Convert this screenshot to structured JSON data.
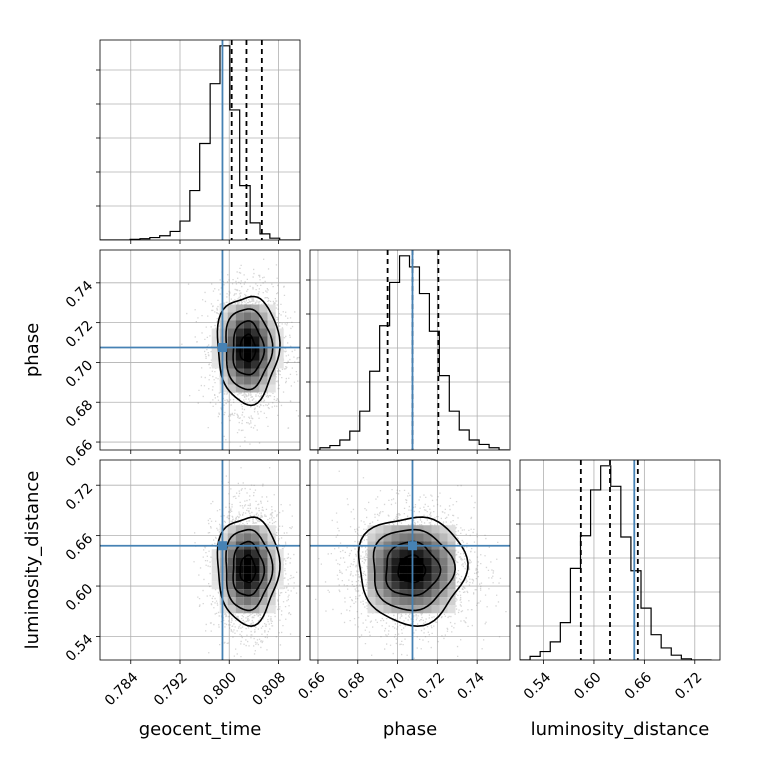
{
  "colors": {
    "truth": "#4682b4",
    "hist": "#000000",
    "grid": "#b0b0b0"
  },
  "chart_data": {
    "type": "corner",
    "parameters": [
      "geocent_time",
      "phase",
      "luminosity_distance"
    ],
    "truths": {
      "geocent_time": 0.7989,
      "phase": 0.7075,
      "luminosity_distance": 0.648
    },
    "ranges": {
      "geocent_time": [
        0.779,
        0.8115
      ],
      "phase": [
        0.656,
        0.7565
      ],
      "luminosity_distance": [
        0.512,
        0.75
      ]
    },
    "ticks": {
      "geocent_time": [
        "0.784",
        "0.792",
        "0.800",
        "0.808"
      ],
      "phase": [
        "0.66",
        "0.68",
        "0.70",
        "0.72",
        "0.74"
      ],
      "luminosity_distance": [
        "0.54",
        "0.60",
        "0.66",
        "0.72"
      ]
    },
    "quantiles": {
      "geocent_time": [
        0.8004,
        0.8028,
        0.8053
      ],
      "phase": [
        0.695,
        0.7075,
        0.7205
      ],
      "luminosity_distance": [
        0.5844,
        0.6191,
        0.6522
      ]
    },
    "histograms": {
      "geocent_time": {
        "bins": [
          0.779,
          0.7806,
          0.7822,
          0.7839,
          0.7855,
          0.7871,
          0.7887,
          0.7904,
          0.792,
          0.7936,
          0.7952,
          0.7969,
          0.7985,
          0.8001,
          0.8017,
          0.8034,
          0.805,
          0.8066,
          0.8082,
          0.8099,
          0.8115
        ],
        "counts": [
          0,
          0,
          0,
          1,
          2,
          4,
          7,
          14,
          31,
          81,
          158,
          256,
          318,
          213,
          89,
          28,
          10,
          3,
          0,
          0
        ]
      },
      "phase": {
        "bins": [
          0.656,
          0.661,
          0.666,
          0.671,
          0.676,
          0.681,
          0.686,
          0.691,
          0.696,
          0.701,
          0.706,
          0.711,
          0.716,
          0.721,
          0.726,
          0.731,
          0.736,
          0.741,
          0.746,
          0.751,
          0.756
        ],
        "counts": [
          0,
          2,
          4,
          9,
          17,
          35,
          71,
          112,
          151,
          175,
          165,
          141,
          107,
          67,
          35,
          18,
          9,
          5,
          2,
          0
        ]
      },
      "luminosity_distance": {
        "bins": [
          0.512,
          0.524,
          0.536,
          0.548,
          0.56,
          0.572,
          0.584,
          0.596,
          0.608,
          0.62,
          0.632,
          0.644,
          0.656,
          0.668,
          0.68,
          0.692,
          0.704,
          0.716,
          0.728,
          0.74
        ],
        "counts": [
          0,
          3,
          7,
          15,
          31,
          76,
          103,
          141,
          161,
          144,
          102,
          74,
          43,
          21,
          10,
          4,
          1,
          0,
          0
        ]
      }
    },
    "posterior_center": {
      "geocent_time": 0.803,
      "phase": 0.707,
      "luminosity_distance": 0.62
    },
    "grid": true
  }
}
